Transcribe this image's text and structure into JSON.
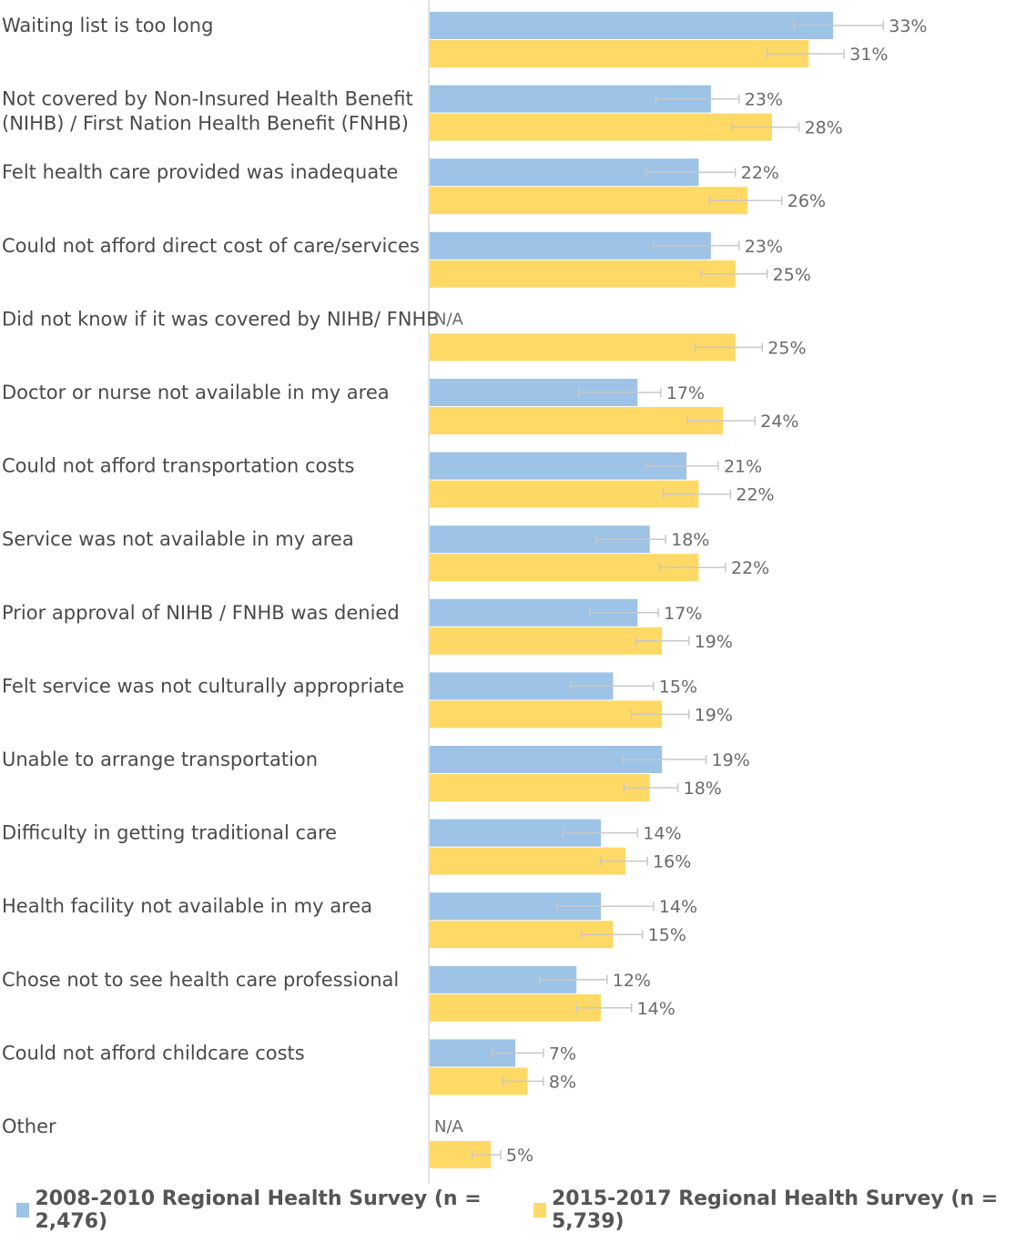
{
  "chart_data": {
    "type": "bar",
    "orientation": "horizontal",
    "xlim": [
      0,
      40
    ],
    "categories": [
      [
        "Waiting list is too long"
      ],
      [
        "Not covered by Non-Insured Health Benefit",
        "(NIHB) / First Nation Health Benefit (FNHB)"
      ],
      [
        "Felt health care provided was inadequate"
      ],
      [
        "Could not afford direct cost of care/services"
      ],
      [
        "Did not know if it was covered by NIHB/ FNHB"
      ],
      [
        "Doctor or nurse not available in my area"
      ],
      [
        "Could not afford transportation costs"
      ],
      [
        "Service was not available in my area"
      ],
      [
        "Prior approval of NIHB / FNHB was denied"
      ],
      [
        "Felt service was not culturally appropriate"
      ],
      [
        "Unable to arrange transportation"
      ],
      [
        "Difficulty in getting traditional care"
      ],
      [
        "Health facility not available in my area"
      ],
      [
        "Chose not to see health care professional"
      ],
      [
        "Could not afford childcare costs"
      ],
      [
        "Other"
      ]
    ],
    "series": [
      {
        "name": "2008-2010 Regional Health Survey  (n = 2,476)",
        "color": "#9dc3e6",
        "values": [
          33,
          23,
          22,
          23,
          null,
          17,
          21,
          18,
          17,
          15,
          19,
          14,
          14,
          12,
          7,
          null
        ],
        "labels": [
          "33%",
          "23%",
          "22%",
          "23%",
          "N/A",
          "17%",
          "21%",
          "18%",
          "17%",
          "15%",
          "19%",
          "14%",
          "14%",
          "12%",
          "7%",
          "N/A"
        ],
        "ci": [
          [
            29.8,
            37.1
          ],
          [
            18.5,
            25.3
          ],
          [
            17.7,
            25.0
          ],
          [
            18.3,
            25.3
          ],
          null,
          [
            12.2,
            18.9
          ],
          [
            17.7,
            23.6
          ],
          [
            13.6,
            19.3
          ],
          [
            13.1,
            18.7
          ],
          [
            11.5,
            18.3
          ],
          [
            15.8,
            22.6
          ],
          [
            10.9,
            17.0
          ],
          [
            10.4,
            18.3
          ],
          [
            9.0,
            14.5
          ],
          [
            5.1,
            9.3
          ],
          null
        ]
      },
      {
        "name": "2015-2017 Regional Health Survey  (n = 5,739)",
        "color": "#ffd966",
        "values": [
          31,
          28,
          26,
          25,
          25,
          24,
          22,
          22,
          19,
          19,
          18,
          16,
          15,
          14,
          8,
          5
        ],
        "labels": [
          "31%",
          "28%",
          "26%",
          "25%",
          "25%",
          "24%",
          "22%",
          "22%",
          "19%",
          "19%",
          "18%",
          "16%",
          "15%",
          "14%",
          "8%",
          "5%"
        ],
        "ci": [
          [
            27.6,
            33.9
          ],
          [
            24.7,
            30.2
          ],
          [
            22.9,
            28.8
          ],
          [
            22.2,
            27.6
          ],
          [
            21.7,
            27.2
          ],
          [
            21.1,
            26.6
          ],
          [
            19.1,
            24.6
          ],
          [
            18.8,
            24.2
          ],
          [
            16.9,
            21.2
          ],
          [
            16.5,
            21.2
          ],
          [
            15.9,
            20.3
          ],
          [
            14.0,
            17.8
          ],
          [
            12.4,
            17.4
          ],
          [
            12.0,
            16.5
          ],
          [
            6.0,
            9.3
          ],
          [
            3.5,
            5.8
          ]
        ]
      }
    ],
    "legend_position": "bottom",
    "grid": false
  }
}
